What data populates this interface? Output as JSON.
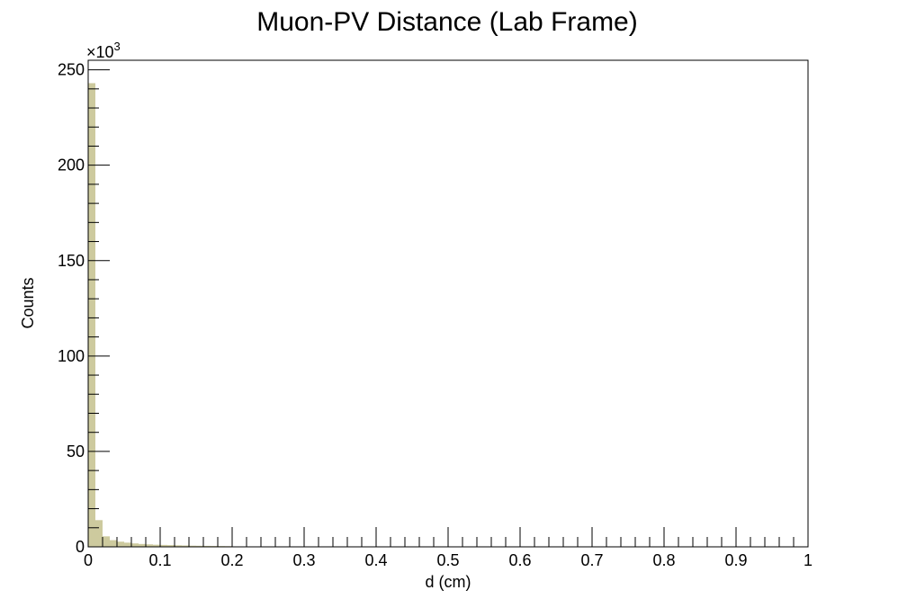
{
  "chart_data": {
    "type": "bar",
    "title": "Muon-PV Distance (Lab Frame)",
    "xlabel": "d (cm)",
    "ylabel": "Counts",
    "y_multiplier": "×10",
    "y_multiplier_exp": "3",
    "xlim": [
      0,
      1
    ],
    "ylim": [
      0,
      255
    ],
    "bin_width": 0.01,
    "x_tick_labels": [
      "0",
      "0.1",
      "0.2",
      "0.3",
      "0.4",
      "0.5",
      "0.6",
      "0.7",
      "0.8",
      "0.9",
      "1"
    ],
    "x_tick_values": [
      0,
      0.1,
      0.2,
      0.3,
      0.4,
      0.5,
      0.6,
      0.7,
      0.8,
      0.9,
      1
    ],
    "y_tick_labels": [
      "0",
      "50",
      "100",
      "150",
      "200",
      "250"
    ],
    "y_tick_values": [
      0,
      50,
      100,
      150,
      200,
      250
    ],
    "bin_lows": [
      0,
      0.01,
      0.02,
      0.03,
      0.04,
      0.05,
      0.06,
      0.07,
      0.08,
      0.09,
      0.1,
      0.11,
      0.12,
      0.13,
      0.14,
      0.15,
      0.16,
      0.17,
      0.18,
      0.19
    ],
    "values": [
      243,
      14,
      5.5,
      3.5,
      2.7,
      2.2,
      1.8,
      1.5,
      1.3,
      1.1,
      1.0,
      0.9,
      0.8,
      0.7,
      0.6,
      0.55,
      0.5,
      0.45,
      0.4,
      0.35
    ],
    "fill_color": "#cdca9e",
    "grid": false,
    "legend": "none"
  }
}
